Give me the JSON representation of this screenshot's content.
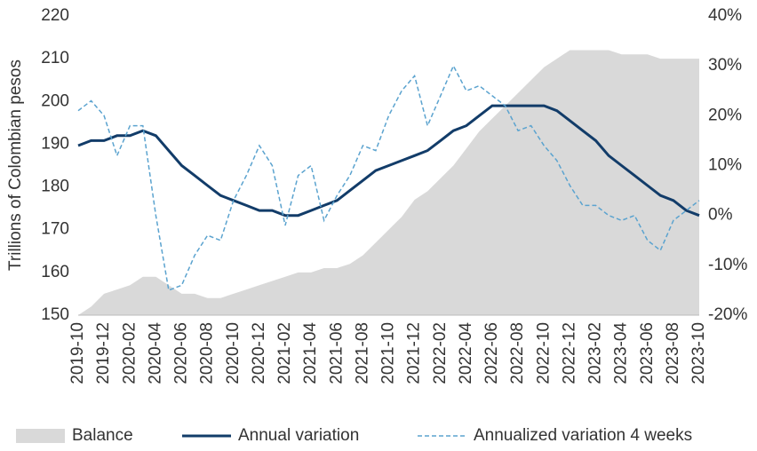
{
  "chart_data": {
    "type": "line",
    "ylabel": "Trillions of Colombian pesos",
    "categories": [
      "2019-10",
      null,
      "2019-12",
      null,
      "2020-02",
      null,
      "2020-04",
      null,
      "2020-06",
      null,
      "2020-08",
      null,
      "2020-10",
      null,
      "2020-12",
      null,
      "2021-02",
      null,
      "2021-04",
      null,
      "2021-06",
      null,
      "2021-08",
      null,
      "2021-10",
      null,
      "2021-12",
      null,
      "2022-02",
      null,
      "2022-04",
      null,
      "2022-06",
      null,
      "2022-08",
      null,
      "2022-10",
      null,
      "2022-12",
      null,
      "2023-02",
      null,
      "2023-04",
      null,
      "2023-06",
      null,
      "2023-08",
      null,
      "2023-10"
    ],
    "ylim": [
      150,
      220
    ],
    "yticks": [
      150,
      160,
      170,
      180,
      190,
      200,
      210,
      220
    ],
    "y2lim": [
      -20,
      40
    ],
    "y2ticks": [
      {
        "value": -20,
        "label": "-20%"
      },
      {
        "value": -10,
        "label": "-10%"
      },
      {
        "value": 0,
        "label": "0%"
      },
      {
        "value": 10,
        "label": "10%"
      },
      {
        "value": 20,
        "label": "20%"
      },
      {
        "value": 30,
        "label": "30%"
      },
      {
        "value": 40,
        "label": "40%"
      }
    ],
    "legend": "bottom",
    "series": [
      {
        "name": "Balance",
        "type": "area",
        "color": "#d9d9d9",
        "values": [
          150,
          152,
          155,
          156,
          157,
          159,
          159,
          157,
          155,
          155,
          154,
          154,
          155,
          156,
          157,
          158,
          159,
          160,
          160,
          161,
          161,
          162,
          164,
          167,
          170,
          173,
          177,
          179,
          182,
          185,
          189,
          193,
          196,
          199,
          202,
          205,
          208,
          210,
          212,
          212,
          212,
          212,
          211,
          211,
          211,
          210,
          210,
          210,
          210
        ]
      },
      {
        "name": "Annual variation",
        "type": "line",
        "axis": "y2",
        "color": "#123c69",
        "values": [
          14,
          15,
          15,
          16,
          16,
          17,
          16,
          13,
          10,
          8,
          6,
          4,
          3,
          2,
          1,
          1,
          0,
          0,
          1,
          2,
          3,
          5,
          7,
          9,
          10,
          11,
          12,
          13,
          15,
          17,
          18,
          20,
          22,
          22,
          22,
          22,
          22,
          21,
          19,
          17,
          15,
          12,
          10,
          8,
          6,
          4,
          3,
          1,
          0
        ]
      },
      {
        "name": "Annualized variation 4 weeks",
        "type": "dashed",
        "axis": "y2",
        "color": "#5ba3cf",
        "values": [
          21,
          23,
          20,
          12,
          18,
          18,
          0,
          -15,
          -14,
          -8,
          -4,
          -5,
          3,
          8,
          14,
          10,
          -2,
          8,
          10,
          -1,
          4,
          8,
          14,
          13,
          20,
          25,
          28,
          18,
          24,
          30,
          25,
          26,
          24,
          22,
          17,
          18,
          14,
          11,
          6,
          2,
          2,
          0,
          -1,
          0,
          -5,
          -7,
          -1,
          1,
          3
        ]
      }
    ]
  }
}
